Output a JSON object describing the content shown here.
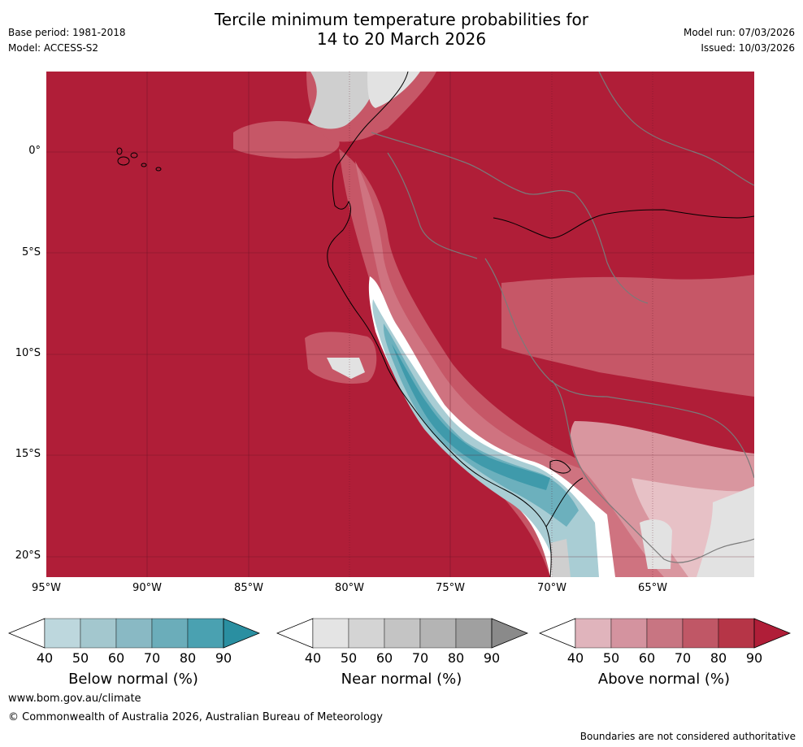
{
  "header": {
    "title_line1": "Tercile minimum temperature probabilities for",
    "title_line2": "14 to 20 March 2026",
    "base_period": "Base period: 1981-2018",
    "model": "Model: ACCESS-S2",
    "model_run": "Model run: 07/03/2026",
    "issued": "Issued: 10/03/2026"
  },
  "axes": {
    "x_ticks": [
      "95°W",
      "90°W",
      "85°W",
      "80°W",
      "75°W",
      "70°W",
      "65°W"
    ],
    "y_ticks": [
      "0°",
      "5°S",
      "10°S",
      "15°S",
      "20°S"
    ]
  },
  "legends": [
    {
      "name": "below",
      "label": "Below normal (%)",
      "ticks": [
        "40",
        "50",
        "60",
        "70",
        "80",
        "90"
      ],
      "colors": [
        "#bdd7dd",
        "#a3c7ce",
        "#89b9c4",
        "#6badba",
        "#4aa1b1",
        "#2a8fa1"
      ]
    },
    {
      "name": "near",
      "label": "Near normal (%)",
      "ticks": [
        "40",
        "50",
        "60",
        "70",
        "80",
        "90"
      ],
      "colors": [
        "#e4e4e4",
        "#d4d4d4",
        "#c4c4c4",
        "#b4b4b4",
        "#a0a0a0",
        "#8a8a8a"
      ]
    },
    {
      "name": "above",
      "label": "Above normal (%)",
      "ticks": [
        "40",
        "50",
        "60",
        "70",
        "80",
        "90"
      ],
      "colors": [
        "#e0b4bc",
        "#d4939f",
        "#c87582",
        "#c05766",
        "#b63547",
        "#b01e38"
      ]
    }
  ],
  "map_colors": {
    "above90": "#b01e38",
    "above80": "#bf3749",
    "above70": "#c65767",
    "above60": "#cf7380",
    "above50": "#d9969f",
    "above40": "#e7c1c6",
    "near40": "#e2e2e2",
    "near50": "#cfcfcf",
    "below40": "#a9cdd4",
    "below60": "#6cb0bd",
    "below80": "#3f9aab",
    "below90": "#2a8fa1"
  },
  "footer": {
    "url": "www.bom.gov.au/climate",
    "copyright": "© Commonwealth of Australia 2026, Australian Bureau of Meteorology",
    "disclaimer": "Boundaries are not considered authoritative"
  }
}
